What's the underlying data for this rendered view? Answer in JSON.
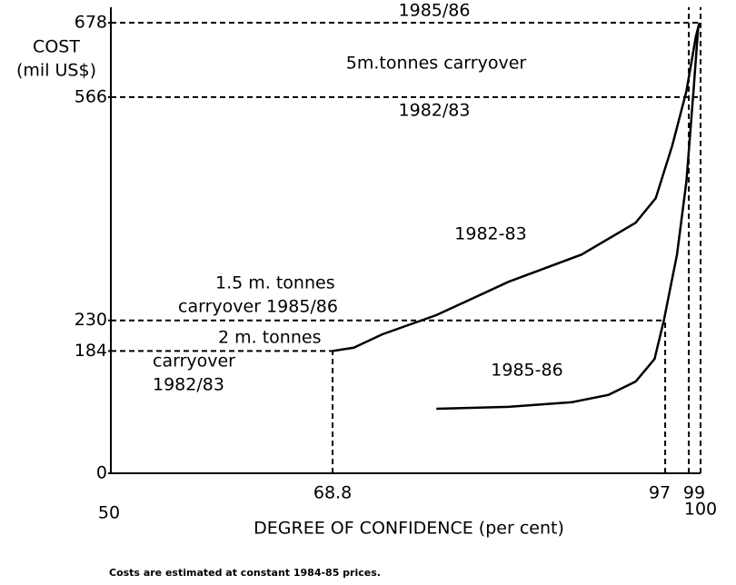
{
  "chart_data": {
    "type": "line",
    "x_label": "DEGREE OF CONFIDENCE (per cent)",
    "y_label": [
      "COST",
      "(mil US$)"
    ],
    "note": "Costs are estimated at constant 1984-85 prices.",
    "xlim": [
      50,
      100
    ],
    "ylim": [
      0,
      678
    ],
    "xticks": [
      50,
      68.8,
      97,
      99,
      100
    ],
    "yticks": [
      0,
      184,
      230,
      566,
      678
    ],
    "color": "#000000",
    "series": [
      {
        "name": "1982-83",
        "x": [
          68.8,
          70.6,
          73,
          77.6,
          83.7,
          89.9,
          94.5,
          96.2,
          97.6,
          98.8,
          99.6,
          99.9
        ],
        "values": [
          184,
          189,
          209,
          238,
          288,
          329,
          377,
          414,
          493,
          575,
          657,
          678
        ]
      },
      {
        "name": "1985-86",
        "x": [
          77.6,
          83.7,
          89.1,
          92.2,
          94.5,
          96.1,
          96.9,
          98,
          98.8,
          99.4,
          99.8
        ],
        "values": [
          97,
          100,
          107,
          118,
          138,
          172,
          231,
          329,
          439,
          575,
          671
        ]
      }
    ],
    "annotations": [
      "1985/86",
      "5m.tonnes carryover",
      "1982/83",
      "1.5 m. tonnes",
      "carryover 1985/86",
      "2 m. tonnes",
      "carryover",
      "1982/83"
    ]
  }
}
